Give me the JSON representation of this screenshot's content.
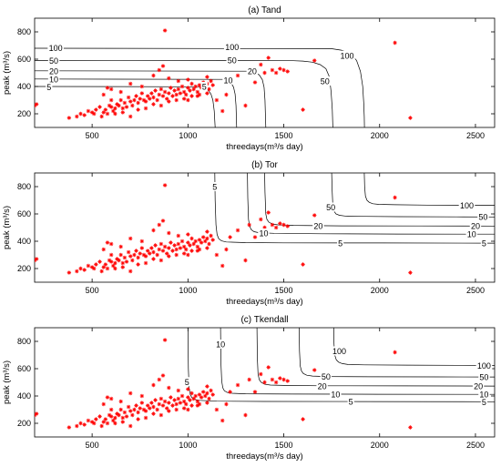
{
  "chart_data": [
    {
      "type": "scatter",
      "title": "(a) Tand",
      "xlabel": "threedays(m³/s day)",
      "ylabel": "peak (m³/s)",
      "xlim": [
        200,
        2600
      ],
      "ylim": [
        100,
        900
      ],
      "xticks": [
        500,
        1000,
        1500,
        2000,
        2500
      ],
      "yticks": [
        200,
        400,
        600,
        800
      ],
      "grid": false,
      "points": [],
      "contours": [
        {
          "level": "5",
          "x": [
            200,
            1060,
            1085,
            1105,
            1120,
            1130,
            1137,
            1142
          ],
          "y": [
            400,
            398,
            390,
            375,
            345,
            300,
            220,
            100
          ]
        },
        {
          "level": "10",
          "x": [
            200,
            1180,
            1205,
            1225,
            1238,
            1246,
            1251,
            1254
          ],
          "y": [
            455,
            452,
            444,
            428,
            395,
            345,
            260,
            100
          ]
        },
        {
          "level": "20",
          "x": [
            200,
            1320,
            1350,
            1372,
            1388,
            1397,
            1402,
            1406
          ],
          "y": [
            515,
            512,
            502,
            485,
            450,
            395,
            300,
            100
          ]
        },
        {
          "level": "50",
          "x": [
            200,
            1550,
            1600,
            1650,
            1690,
            1720,
            1738,
            1747,
            1753,
            1756
          ],
          "y": [
            590,
            589,
            586,
            578,
            560,
            530,
            470,
            360,
            230,
            100
          ]
        },
        {
          "level": "100",
          "x": [
            200,
            1750,
            1800,
            1850,
            1880,
            1900,
            1912,
            1917,
            1920,
            1921
          ],
          "y": [
            680,
            677,
            666,
            640,
            590,
            510,
            400,
            280,
            180,
            100
          ]
        }
      ],
      "contour_labels": [
        {
          "text": "100",
          "x": 310,
          "y": 685
        },
        {
          "text": "100",
          "x": 1230,
          "y": 690
        },
        {
          "text": "100",
          "x": 1830,
          "y": 628
        },
        {
          "text": "50",
          "x": 300,
          "y": 590
        },
        {
          "text": "50",
          "x": 1230,
          "y": 592
        },
        {
          "text": "50",
          "x": 1715,
          "y": 440
        },
        {
          "text": "20",
          "x": 300,
          "y": 512
        },
        {
          "text": "20",
          "x": 1335,
          "y": 515
        },
        {
          "text": "10",
          "x": 300,
          "y": 452
        },
        {
          "text": "10",
          "x": 1210,
          "y": 448
        },
        {
          "text": "5",
          "x": 275,
          "y": 398
        },
        {
          "text": "5",
          "x": 1085,
          "y": 400
        }
      ]
    },
    {
      "type": "scatter",
      "title": "(b) Tor",
      "xlabel": "threedays(m³/s day)",
      "ylabel": "peak (m³/s)",
      "xlim": [
        200,
        2600
      ],
      "ylim": [
        100,
        900
      ],
      "xticks": [
        500,
        1000,
        1500,
        2000,
        2500
      ],
      "yticks": [
        200,
        400,
        600,
        800
      ],
      "grid": false,
      "points": [],
      "contours": [
        {
          "level": "5",
          "x": [
            1140,
            1142,
            1146,
            1152,
            1160,
            1175,
            1200,
            1300,
            1500,
            2000,
            2600
          ],
          "y": [
            900,
            700,
            520,
            450,
            420,
            403,
            395,
            390,
            388,
            387,
            386
          ]
        },
        {
          "level": "10",
          "x": [
            1310,
            1312,
            1316,
            1322,
            1330,
            1345,
            1370,
            1450,
            1700,
            2100,
            2600
          ],
          "y": [
            900,
            720,
            560,
            510,
            485,
            470,
            463,
            458,
            455,
            453,
            452
          ]
        },
        {
          "level": "20",
          "x": [
            1400,
            1402,
            1406,
            1412,
            1422,
            1440,
            1470,
            1550,
            1800,
            2200,
            2600
          ],
          "y": [
            900,
            760,
            600,
            560,
            540,
            526,
            520,
            516,
            513,
            512,
            511
          ]
        },
        {
          "level": "50",
          "x": [
            1750,
            1752,
            1756,
            1762,
            1772,
            1790,
            1820,
            1900,
            2100,
            2400,
            2600
          ],
          "y": [
            900,
            780,
            660,
            620,
            600,
            590,
            585,
            582,
            580,
            579,
            578
          ]
        },
        {
          "level": "100",
          "x": [
            1920,
            1922,
            1926,
            1934,
            1946,
            1965,
            1995,
            2080,
            2250,
            2450,
            2600
          ],
          "y": [
            900,
            800,
            730,
            700,
            685,
            675,
            670,
            667,
            665,
            664,
            663
          ]
        }
      ],
      "contour_labels": [
        {
          "text": "5",
          "x": 1140,
          "y": 800
        },
        {
          "text": "5",
          "x": 1795,
          "y": 388
        },
        {
          "text": "5",
          "x": 2545,
          "y": 386
        },
        {
          "text": "10",
          "x": 1395,
          "y": 460
        },
        {
          "text": "10",
          "x": 2480,
          "y": 452
        },
        {
          "text": "20",
          "x": 1680,
          "y": 515
        },
        {
          "text": "20",
          "x": 2500,
          "y": 512
        },
        {
          "text": "50",
          "x": 1745,
          "y": 650
        },
        {
          "text": "50",
          "x": 2540,
          "y": 579
        },
        {
          "text": "100",
          "x": 2455,
          "y": 664
        }
      ]
    },
    {
      "type": "scatter",
      "title": "(c) Tkendall",
      "xlabel": "threedays(m³/s day)",
      "ylabel": "peak (m³/s)",
      "xlim": [
        200,
        2600
      ],
      "ylim": [
        100,
        900
      ],
      "xticks": [
        500,
        1000,
        1500,
        2000,
        2500
      ],
      "yticks": [
        200,
        400,
        600,
        800
      ],
      "grid": false,
      "points": [],
      "contours": [
        {
          "level": "5",
          "x": [
            1000,
            1002,
            1006,
            1012,
            1020,
            1035,
            1060,
            1150,
            1400,
            1900,
            2600
          ],
          "y": [
            900,
            600,
            460,
            410,
            390,
            375,
            368,
            362,
            360,
            359,
            358
          ]
        },
        {
          "level": "10",
          "x": [
            1170,
            1172,
            1176,
            1182,
            1190,
            1205,
            1230,
            1300,
            1550,
            2000,
            2600
          ],
          "y": [
            900,
            650,
            510,
            460,
            438,
            426,
            420,
            416,
            414,
            413,
            412
          ]
        },
        {
          "level": "20",
          "x": [
            1360,
            1362,
            1366,
            1372,
            1382,
            1400,
            1430,
            1500,
            1700,
            2100,
            2600
          ],
          "y": [
            900,
            680,
            560,
            520,
            500,
            486,
            480,
            477,
            475,
            474,
            473
          ]
        },
        {
          "level": "50",
          "x": [
            1580,
            1582,
            1586,
            1592,
            1602,
            1620,
            1650,
            1720,
            1950,
            2300,
            2600
          ],
          "y": [
            900,
            730,
            620,
            585,
            565,
            552,
            546,
            543,
            541,
            540,
            539
          ]
        },
        {
          "level": "100",
          "x": [
            1760,
            1762,
            1766,
            1774,
            1786,
            1805,
            1835,
            1920,
            2150,
            2400,
            2600
          ],
          "y": [
            900,
            780,
            700,
            665,
            648,
            637,
            631,
            628,
            626,
            625,
            624
          ]
        }
      ],
      "contour_labels": [
        {
          "text": "5",
          "x": 995,
          "y": 505
        },
        {
          "text": "5",
          "x": 1850,
          "y": 359
        },
        {
          "text": "5",
          "x": 2545,
          "y": 358
        },
        {
          "text": "10",
          "x": 1170,
          "y": 780
        },
        {
          "text": "10",
          "x": 1770,
          "y": 413
        },
        {
          "text": "10",
          "x": 2545,
          "y": 412
        },
        {
          "text": "20",
          "x": 1700,
          "y": 475
        },
        {
          "text": "20",
          "x": 2515,
          "y": 474
        },
        {
          "text": "50",
          "x": 1720,
          "y": 543
        },
        {
          "text": "50",
          "x": 2545,
          "y": 540
        },
        {
          "text": "100",
          "x": 1790,
          "y": 730
        },
        {
          "text": "100",
          "x": 2545,
          "y": 625
        }
      ]
    }
  ],
  "scatter_points": [
    [
      210,
      270
    ],
    [
      200,
      260
    ],
    [
      380,
      170
    ],
    [
      420,
      180
    ],
    [
      440,
      200
    ],
    [
      460,
      190
    ],
    [
      480,
      220
    ],
    [
      500,
      210
    ],
    [
      510,
      200
    ],
    [
      520,
      230
    ],
    [
      540,
      250
    ],
    [
      550,
      180
    ],
    [
      560,
      210
    ],
    [
      570,
      230
    ],
    [
      580,
      200
    ],
    [
      590,
      260
    ],
    [
      600,
      250
    ],
    [
      610,
      220
    ],
    [
      620,
      240
    ],
    [
      630,
      270
    ],
    [
      640,
      260
    ],
    [
      650,
      300
    ],
    [
      660,
      240
    ],
    [
      670,
      280
    ],
    [
      680,
      250
    ],
    [
      690,
      320
    ],
    [
      700,
      290
    ],
    [
      710,
      260
    ],
    [
      720,
      300
    ],
    [
      730,
      330
    ],
    [
      740,
      280
    ],
    [
      750,
      310
    ],
    [
      760,
      350
    ],
    [
      770,
      300
    ],
    [
      780,
      290
    ],
    [
      790,
      330
    ],
    [
      800,
      310
    ],
    [
      810,
      350
    ],
    [
      820,
      320
    ],
    [
      830,
      370
    ],
    [
      840,
      300
    ],
    [
      850,
      340
    ],
    [
      860,
      380
    ],
    [
      870,
      330
    ],
    [
      880,
      360
    ],
    [
      890,
      310
    ],
    [
      900,
      350
    ],
    [
      910,
      390
    ],
    [
      920,
      330
    ],
    [
      930,
      370
    ],
    [
      940,
      340
    ],
    [
      950,
      380
    ],
    [
      960,
      350
    ],
    [
      970,
      400
    ],
    [
      980,
      360
    ],
    [
      990,
      340
    ],
    [
      1000,
      390
    ],
    [
      1010,
      370
    ],
    [
      1020,
      420
    ],
    [
      1030,
      380
    ],
    [
      1040,
      400
    ],
    [
      1050,
      360
    ],
    [
      1060,
      410
    ],
    [
      1070,
      390
    ],
    [
      1080,
      430
    ],
    [
      1090,
      400
    ],
    [
      1100,
      420
    ],
    [
      1110,
      380
    ],
    [
      1120,
      440
    ],
    [
      1130,
      410
    ],
    [
      560,
      340
    ],
    [
      580,
      390
    ],
    [
      600,
      380
    ],
    [
      650,
      360
    ],
    [
      700,
      420
    ],
    [
      760,
      400
    ],
    [
      820,
      480
    ],
    [
      850,
      520
    ],
    [
      870,
      550
    ],
    [
      880,
      810
    ],
    [
      900,
      460
    ],
    [
      950,
      440
    ],
    [
      1000,
      450
    ],
    [
      1050,
      330
    ],
    [
      1100,
      470
    ],
    [
      1150,
      300
    ],
    [
      1180,
      220
    ],
    [
      1200,
      340
    ],
    [
      1220,
      430
    ],
    [
      1260,
      480
    ],
    [
      1300,
      260
    ],
    [
      1320,
      520
    ],
    [
      1350,
      430
    ],
    [
      1380,
      560
    ],
    [
      1400,
      500
    ],
    [
      1420,
      610
    ],
    [
      1440,
      520
    ],
    [
      1460,
      500
    ],
    [
      1480,
      530
    ],
    [
      1500,
      520
    ],
    [
      1520,
      510
    ],
    [
      1600,
      230
    ],
    [
      1660,
      590
    ],
    [
      2080,
      720
    ],
    [
      2160,
      170
    ],
    [
      600,
      300
    ],
    [
      620,
      200
    ],
    [
      660,
      210
    ],
    [
      700,
      180
    ],
    [
      740,
      230
    ],
    [
      780,
      240
    ],
    [
      820,
      270
    ],
    [
      860,
      260
    ],
    [
      900,
      290
    ],
    [
      940,
      300
    ],
    [
      980,
      310
    ],
    [
      1020,
      330
    ],
    [
      1060,
      340
    ],
    [
      1100,
      350
    ],
    [
      1000,
      300
    ]
  ],
  "colors": {
    "point": "#ff0000",
    "contour": "#000000"
  }
}
